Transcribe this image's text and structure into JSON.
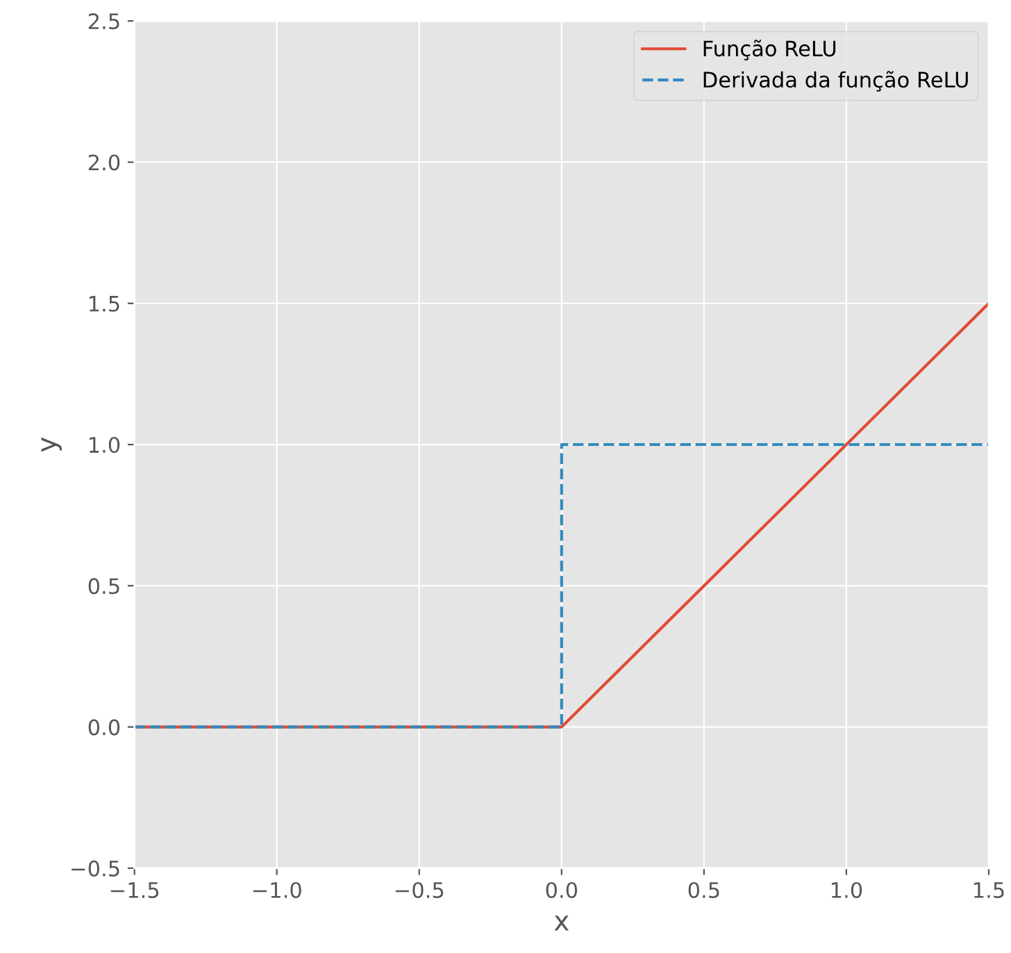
{
  "chart_data": {
    "type": "line",
    "xlabel": "x",
    "ylabel": "y",
    "series": [
      {
        "name": "Função ReLU",
        "color": "#e24a33",
        "x": [
          -1.5,
          0,
          1.5
        ],
        "values": [
          0,
          0,
          1.5
        ],
        "line_style": "solid"
      },
      {
        "name": "Derivada da função ReLU",
        "color": "#348abd",
        "x": [
          -1.5,
          0,
          0,
          1.5
        ],
        "values": [
          0,
          0,
          1,
          1
        ],
        "line_style": "dashed"
      }
    ],
    "xlim": [
      -1.5,
      1.5
    ],
    "ylim": [
      -0.5,
      2.5
    ],
    "xticks": [
      {
        "value": -1.5,
        "label": "−1.5"
      },
      {
        "value": -1.0,
        "label": "−1.0"
      },
      {
        "value": -0.5,
        "label": "−0.5"
      },
      {
        "value": 0,
        "label": "0.0"
      },
      {
        "value": 0.5,
        "label": "0.5"
      },
      {
        "value": 1.0,
        "label": "1.0"
      },
      {
        "value": 1.5,
        "label": "1.5"
      }
    ],
    "yticks": [
      {
        "value": -0.5,
        "label": "−0.5"
      },
      {
        "value": 0,
        "label": "0.0"
      },
      {
        "value": 0.5,
        "label": "0.5"
      },
      {
        "value": 1.0,
        "label": "1.0"
      },
      {
        "value": 1.5,
        "label": "1.5"
      },
      {
        "value": 2.0,
        "label": "2.0"
      },
      {
        "value": 2.5,
        "label": "2.5"
      }
    ],
    "grid": true,
    "legend": "top right",
    "marker": "none"
  }
}
